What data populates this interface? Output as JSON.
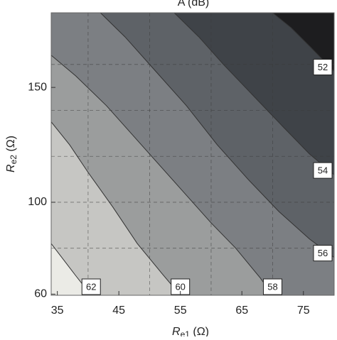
{
  "chart_data": {
    "type": "contour",
    "title": "A (dB)",
    "xlabel": {
      "main": "R",
      "sub": "e1",
      "unit": " (Ω)"
    },
    "ylabel": {
      "main": "R",
      "sub": "e2",
      "unit": " (Ω)"
    },
    "xlim": [
      34,
      80
    ],
    "ylim": [
      59.5,
      182.5
    ],
    "xticks": [
      35,
      45,
      55,
      65,
      75
    ],
    "yticks": [
      60,
      100,
      150
    ],
    "xgrid": [
      40,
      50,
      60,
      70
    ],
    "ygrid": [
      80,
      100,
      120,
      140,
      160
    ],
    "background": "#ebebe6",
    "contours": [
      {
        "level": 62,
        "fill": "#c6c6c3",
        "x": [
          34,
          36,
          38,
          40.5
        ],
        "y": [
          82,
          75,
          68,
          59.5
        ]
      },
      {
        "level": 60,
        "fill": "#9b9d9d",
        "x": [
          34,
          37,
          40,
          44,
          48,
          52,
          55
        ],
        "y": [
          135,
          125,
          113,
          98,
          82,
          69,
          59.5
        ]
      },
      {
        "level": 58,
        "fill": "#7c7f83",
        "x": [
          34,
          38,
          43,
          49,
          55,
          60,
          64,
          68,
          70
        ],
        "y": [
          164,
          155,
          142,
          124,
          106,
          91,
          80,
          67,
          59.5
        ]
      },
      {
        "level": 56,
        "fill": "#5e6267",
        "x": [
          42,
          46,
          51,
          56,
          61,
          66,
          71,
          76,
          80
        ],
        "y": [
          182.5,
          172,
          157,
          142,
          125,
          110,
          96,
          84,
          76
        ]
      },
      {
        "level": 54,
        "fill": "#3f4348",
        "x": [
          54,
          58,
          62,
          67,
          72,
          76,
          80
        ],
        "y": [
          182.5,
          172,
          160,
          146,
          132,
          121,
          112
        ]
      },
      {
        "level": 52,
        "fill": "#1d1d1f",
        "x": [
          70,
          73,
          76,
          80
        ],
        "y": [
          182.5,
          176,
          168,
          157
        ]
      }
    ]
  }
}
